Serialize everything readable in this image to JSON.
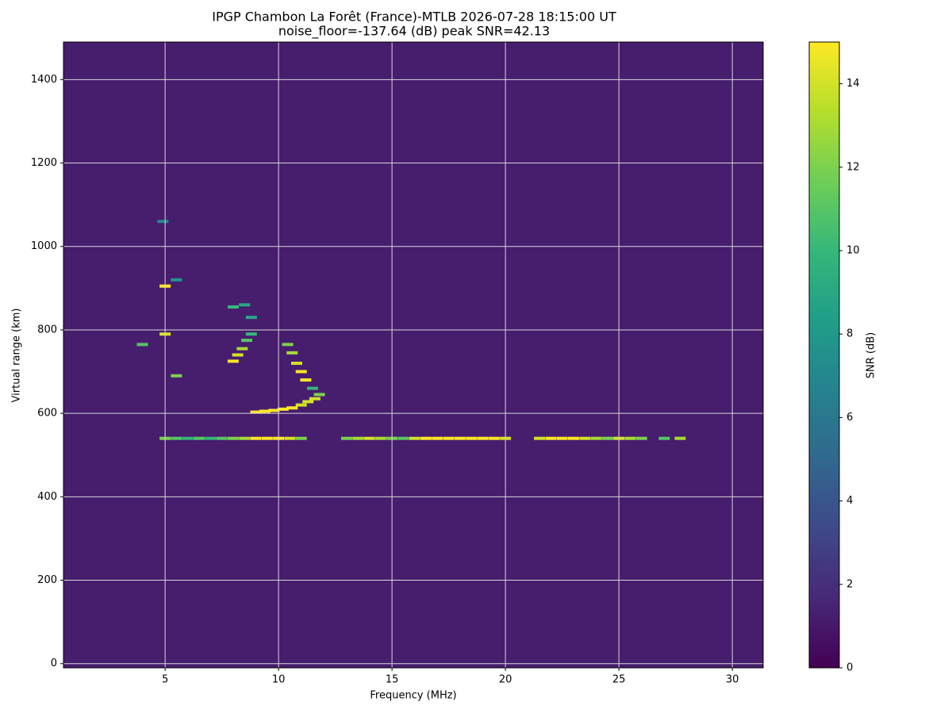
{
  "chart_data": {
    "type": "heatmap",
    "title": "IPGP Chambon La Forêt (France)-MTLB 2026-07-28 18:15:00  UT",
    "subtitle": "noise_floor=-137.64 (dB) peak SNR=42.13",
    "x_label": "Frequency (MHz)",
    "y_label": "Virtual range (km)",
    "colorbar_label": "SNR (dB)",
    "xlim": [
      0.52,
      31.36
    ],
    "xticks": [
      5,
      10,
      15,
      20,
      25,
      30
    ],
    "ylim": [
      -10,
      1490
    ],
    "yticks": [
      0,
      200,
      400,
      600,
      800,
      1000,
      1200,
      1400
    ],
    "clim": [
      0,
      15
    ],
    "cticks": [
      0,
      2,
      4,
      6,
      8,
      10,
      12,
      14
    ],
    "grid": true,
    "colormap": [
      "#440154",
      "#482878",
      "#3e4989",
      "#31688e",
      "#26828e",
      "#1f9e89",
      "#35b779",
      "#6ece58",
      "#b5de2b",
      "#fde725"
    ],
    "background_value": 1.2,
    "x": [
      5.0,
      5.5,
      6.0,
      6.5,
      7.0,
      7.5,
      8.0,
      8.5,
      9.0,
      9.5,
      10.0,
      10.5,
      11.0,
      13.0,
      13.5,
      14.0,
      14.5,
      15.0,
      15.5,
      16.0,
      16.5,
      17.0,
      17.5,
      18.0,
      18.5,
      19.0,
      19.5,
      20.0,
      21.5,
      22.0,
      22.5,
      23.0,
      23.5,
      24.0,
      24.5,
      25.0,
      25.5,
      26.0,
      27.0,
      27.7,
      9.0,
      9.4,
      9.8,
      10.2,
      10.6,
      11.0,
      11.3,
      11.6,
      11.8,
      11.5,
      11.2,
      11.0,
      10.8,
      10.6,
      10.4,
      8.0,
      8.2,
      8.4,
      8.6,
      8.8,
      8.8,
      8.5,
      8.0,
      5.0,
      5.5,
      5.0,
      5.5,
      4.0,
      4.9
    ],
    "y": [
      540,
      540,
      540,
      540,
      540,
      540,
      540,
      540,
      540,
      540,
      540,
      540,
      540,
      540,
      540,
      540,
      540,
      540,
      540,
      540,
      540,
      540,
      540,
      540,
      540,
      540,
      540,
      540,
      540,
      540,
      540,
      540,
      540,
      540,
      540,
      540,
      540,
      540,
      540,
      540,
      603,
      605,
      607,
      610,
      613,
      620,
      628,
      635,
      645,
      660,
      680,
      700,
      720,
      745,
      765,
      725,
      740,
      755,
      775,
      790,
      830,
      860,
      855,
      905,
      920,
      790,
      690,
      765,
      1060
    ],
    "values": [
      12,
      11,
      10,
      11,
      10,
      11,
      12,
      13,
      15,
      15,
      15,
      14,
      12,
      12,
      13,
      14,
      13,
      12,
      11,
      14,
      15,
      15,
      15,
      15,
      15,
      15,
      15,
      14,
      14,
      15,
      15,
      15,
      14,
      13,
      12,
      14,
      13,
      12,
      11,
      13,
      15,
      15,
      15,
      15,
      15,
      14,
      14,
      14,
      12,
      10,
      15,
      15,
      14,
      13,
      12,
      15,
      14,
      13,
      11,
      10,
      9,
      9,
      10,
      15,
      8,
      14,
      12,
      11,
      7
    ]
  }
}
